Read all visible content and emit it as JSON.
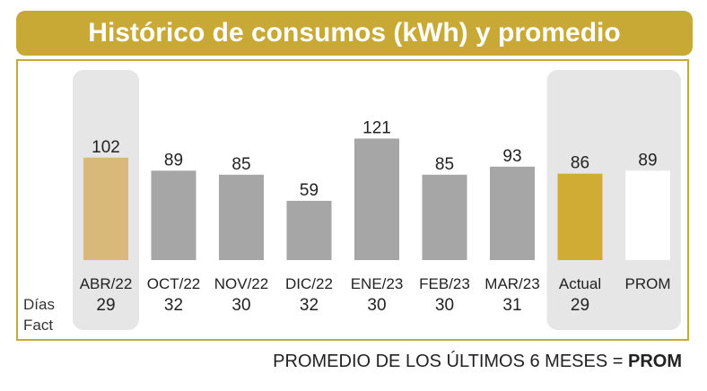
{
  "title": "Histórico de consumos (kWh) y promedio",
  "footer": {
    "text": "PROMEDIO DE LOS ÚLTIMOS 6 MESES = ",
    "bold": "PROM"
  },
  "row_labels": {
    "dias": "Días",
    "fact": "Fact"
  },
  "colors": {
    "accent": "#c9a936",
    "gray_bar": "#a6a6a6",
    "highlight_bar": "#d9b97a",
    "actual_bar": "#d0ac34",
    "prom_bar": "#ffffff",
    "panel": "#e6e6e6"
  },
  "chart_data": {
    "type": "bar",
    "title": "Histórico de consumos (kWh) y promedio",
    "ylabel": "",
    "xlabel": "",
    "ylim": [
      0,
      135
    ],
    "categories": [
      "ABR/22",
      "OCT/22",
      "NOV/22",
      "DIC/22",
      "ENE/23",
      "FEB/23",
      "MAR/23",
      "Actual",
      "PROM"
    ],
    "values": [
      102,
      89,
      85,
      59,
      121,
      85,
      93,
      86,
      89
    ],
    "dias_fact": [
      "29",
      "32",
      "30",
      "32",
      "30",
      "30",
      "31",
      "29",
      ""
    ],
    "bar_styles": [
      "highlight",
      "gray",
      "gray",
      "gray",
      "gray",
      "gray",
      "gray",
      "actual",
      "prom"
    ],
    "panels": [
      [
        0,
        0
      ],
      [
        7,
        8
      ]
    ],
    "grid": false,
    "legend": "none"
  }
}
